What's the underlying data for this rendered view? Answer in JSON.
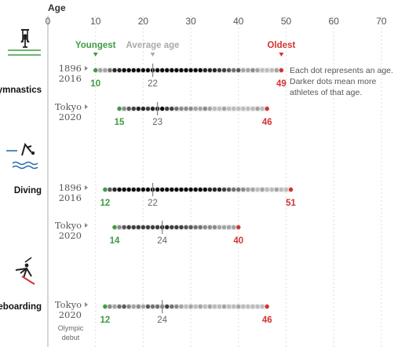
{
  "chart_data": {
    "type": "scatter",
    "axis": {
      "title": "Age",
      "ticks": [
        0,
        10,
        20,
        30,
        40,
        50,
        60,
        70
      ],
      "xlim": [
        0,
        70
      ]
    },
    "header": {
      "youngest": "Youngest",
      "average": "Average age",
      "oldest": "Oldest"
    },
    "note": [
      "Each dot represents an age.",
      "Darker dots mean more",
      "athletes of that age."
    ],
    "colors": {
      "young": "#3d9c40",
      "old": "#d23430",
      "avg": "#999999",
      "track": "#ececec"
    },
    "sports": [
      {
        "name": "ymnastics",
        "icon": "gymnastics-rings-icon",
        "rows": [
          {
            "label": [
              "1896",
              "2016"
            ],
            "min": 10,
            "max": 49,
            "avg": 22,
            "shades": [
              1,
              3,
              3,
              5,
              8,
              8,
              9,
              9,
              9,
              9,
              9,
              9,
              9,
              9,
              9,
              9,
              9,
              9,
              9,
              9,
              9,
              9,
              9,
              8,
              8,
              8,
              7,
              7,
              6,
              5,
              6,
              3,
              3,
              4,
              3,
              2,
              2,
              2,
              3,
              1
            ]
          },
          {
            "label": [
              "Tokyo",
              "2020"
            ],
            "min": 15,
            "max": 46,
            "avg": 23,
            "shades": [
              1,
              4,
              6,
              7,
              8,
              8,
              7,
              8,
              8,
              9,
              7,
              7,
              5,
              4,
              4,
              4,
              3,
              3,
              4,
              3,
              2,
              2,
              3,
              2,
              2,
              2,
              2,
              2,
              2,
              3,
              2,
              1
            ]
          }
        ]
      },
      {
        "name": "Diving",
        "icon": "diving-icon",
        "rows": [
          {
            "label": [
              "1896",
              "2016"
            ],
            "min": 12,
            "max": 51,
            "avg": 22,
            "shades": [
              1,
              6,
              8,
              9,
              9,
              9,
              9,
              9,
              9,
              9,
              9,
              9,
              9,
              9,
              9,
              9,
              9,
              9,
              9,
              9,
              9,
              9,
              8,
              8,
              8,
              7,
              6,
              5,
              5,
              4,
              3,
              3,
              2,
              3,
              2,
              2,
              3,
              2,
              2,
              1
            ]
          },
          {
            "label": [
              "Tokyo",
              "2020"
            ],
            "min": 14,
            "max": 40,
            "avg": 24,
            "shades": [
              1,
              4,
              6,
              7,
              7,
              7,
              7,
              7,
              7,
              7,
              8,
              8,
              7,
              7,
              7,
              6,
              6,
              5,
              5,
              4,
              4,
              4,
              3,
              3,
              3,
              3,
              1
            ]
          }
        ]
      },
      {
        "name": "eboarding",
        "icon": "skateboarding-icon",
        "rows": [
          {
            "label": [
              "Tokyo",
              "2020"
            ],
            "sublabel": [
              "Olympic",
              "debut"
            ],
            "min": 12,
            "max": 46,
            "avg": 24,
            "shades": [
              1,
              4,
              3,
              5,
              6,
              4,
              3,
              4,
              3,
              6,
              5,
              5,
              4,
              7,
              5,
              4,
              3,
              2,
              3,
              2,
              3,
              2,
              3,
              2,
              2,
              3,
              2,
              2,
              3,
              2,
              2,
              2,
              2,
              2,
              3
            ]
          }
        ]
      }
    ]
  }
}
